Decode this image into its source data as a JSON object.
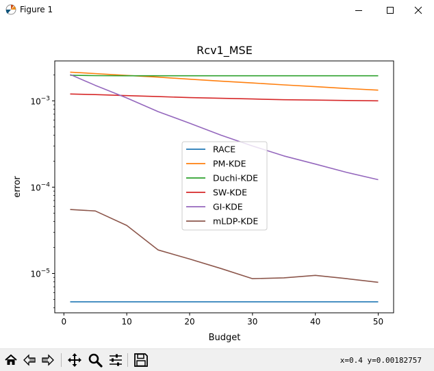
{
  "window": {
    "title": "Figure 1"
  },
  "toolbar": {
    "coords_text": "x=0.4 y=0.00182757"
  },
  "colors": {
    "RACE": "#1f77b4",
    "PM-KDE": "#ff7f0e",
    "Duchi-KDE": "#2ca02c",
    "SW-KDE": "#d62728",
    "GI-KDE": "#9467bd",
    "mLDP-KDE": "#8c564b"
  },
  "chart_data": {
    "type": "line",
    "title": "Rcv1_MSE",
    "xlabel": "Budget",
    "ylabel": "error",
    "xscale": "linear",
    "yscale": "log",
    "xlim": [
      -1.45,
      52.45
    ],
    "ylim": [
      3.5e-06,
      0.0029
    ],
    "xticks": [
      0,
      10,
      20,
      30,
      40,
      50
    ],
    "yticks": [
      1e-05,
      0.0001,
      0.001
    ],
    "ytick_labels": [
      {
        "base": "10",
        "exp": "−5"
      },
      {
        "base": "10",
        "exp": "−4"
      },
      {
        "base": "10",
        "exp": "−3"
      }
    ],
    "grid": false,
    "legend": "center",
    "x": [
      1,
      5,
      10,
      15,
      20,
      25,
      30,
      35,
      40,
      45,
      50
    ],
    "series": [
      {
        "name": "RACE",
        "values": [
          4.7e-06,
          4.7e-06,
          4.7e-06,
          4.7e-06,
          4.7e-06,
          4.7e-06,
          4.7e-06,
          4.7e-06,
          4.7e-06,
          4.7e-06,
          4.7e-06
        ]
      },
      {
        "name": "PM-KDE",
        "values": [
          0.00215,
          0.00207,
          0.00197,
          0.00188,
          0.00178,
          0.00169,
          0.00161,
          0.00153,
          0.00146,
          0.00139,
          0.00133
        ]
      },
      {
        "name": "Duchi-KDE",
        "values": [
          0.00198,
          0.00196,
          0.00195,
          0.00195,
          0.00195,
          0.00195,
          0.00195,
          0.00195,
          0.00195,
          0.00195,
          0.00195
        ]
      },
      {
        "name": "SW-KDE",
        "values": [
          0.0012,
          0.00118,
          0.00115,
          0.00112,
          0.00109,
          0.00107,
          0.00105,
          0.00103,
          0.00102,
          0.00101,
          0.001
        ]
      },
      {
        "name": "GI-KDE",
        "values": [
          0.00202,
          0.00151,
          0.00108,
          0.00075,
          0.00055,
          0.0004,
          0.0003,
          0.00023,
          0.000185,
          0.000148,
          0.000122
        ]
      },
      {
        "name": "mLDP-KDE",
        "values": [
          5.5e-05,
          5.3e-05,
          3.6e-05,
          1.87e-05,
          1.47e-05,
          1.14e-05,
          8.7e-06,
          8.9e-06,
          9.5e-06,
          8.7e-06,
          7.9e-06
        ]
      }
    ]
  }
}
